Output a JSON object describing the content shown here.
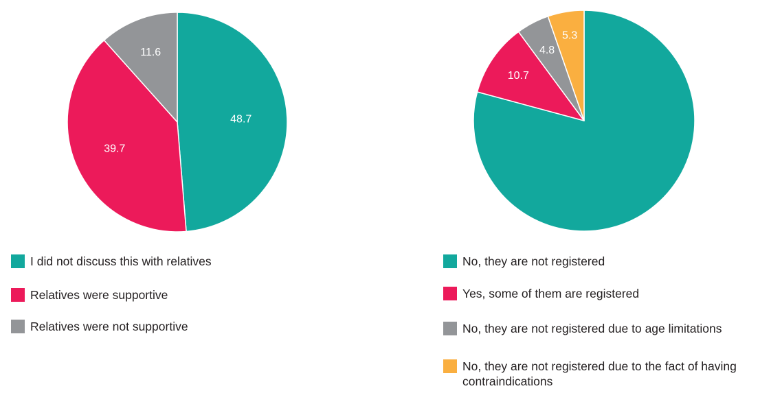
{
  "chart_data": [
    {
      "type": "pie",
      "slices": [
        {
          "label": "I did not discuss this with relatives",
          "value": 48.7,
          "display": "48.7",
          "color": "#12a89d"
        },
        {
          "label": "Relatives were supportive",
          "value": 39.7,
          "display": "39.7",
          "color": "#ec1a5a"
        },
        {
          "label": "Relatives were not supportive",
          "value": 11.6,
          "display": "11.6",
          "color": "#939598"
        }
      ],
      "start_angle_deg": 0,
      "direction": "clockwise",
      "legend_position": "bottom-left"
    },
    {
      "type": "pie",
      "slices": [
        {
          "label": "No, they are not registered",
          "value": 79.2,
          "display": "",
          "color": "#12a89d"
        },
        {
          "label": "Yes, some of them are registered",
          "value": 10.7,
          "display": "10.7",
          "color": "#ec1a5a"
        },
        {
          "label": "No, they are not registered due to age limitations",
          "value": 4.8,
          "display": "4.8",
          "color": "#939598"
        },
        {
          "label": "No, they are not registered due to the fact of having contraindications",
          "value": 5.3,
          "display": "5.3",
          "color": "#faaf40"
        }
      ],
      "start_angle_deg": 0,
      "direction": "clockwise",
      "legend_position": "bottom-left"
    }
  ]
}
